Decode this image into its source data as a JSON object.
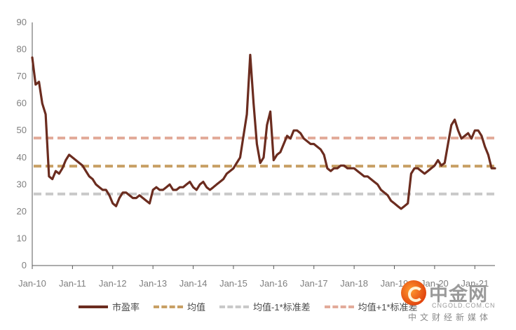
{
  "chart_data": {
    "type": "line",
    "ylim": [
      0,
      90
    ],
    "y_ticks": [
      "0",
      "10",
      "20",
      "30",
      "40",
      "50",
      "60",
      "70",
      "80",
      "90"
    ],
    "x_ticks": [
      "Jan-10",
      "Jan-11",
      "Jan-12",
      "Jan-13",
      "Jan-14",
      "Jan-15",
      "Jan-16",
      "Jan-17",
      "Jan-18",
      "Jan-19",
      "Jan-20",
      "Jan-21"
    ],
    "x_range": [
      "2010-01",
      "2021-07"
    ],
    "grid": false,
    "legend_position": "bottom",
    "series": [
      {
        "name": "市盈率",
        "color": "#6b2c1f",
        "style": "solid",
        "x": [
          "2010-01",
          "2010-02",
          "2010-03",
          "2010-04",
          "2010-05",
          "2010-06",
          "2010-07",
          "2010-08",
          "2010-09",
          "2010-10",
          "2010-11",
          "2010-12",
          "2011-01",
          "2011-02",
          "2011-03",
          "2011-04",
          "2011-05",
          "2011-06",
          "2011-07",
          "2011-08",
          "2011-09",
          "2011-10",
          "2011-11",
          "2011-12",
          "2012-01",
          "2012-02",
          "2012-03",
          "2012-04",
          "2012-05",
          "2012-06",
          "2012-07",
          "2012-08",
          "2012-09",
          "2012-10",
          "2012-11",
          "2012-12",
          "2013-01",
          "2013-02",
          "2013-03",
          "2013-04",
          "2013-05",
          "2013-06",
          "2013-07",
          "2013-08",
          "2013-09",
          "2013-10",
          "2013-11",
          "2013-12",
          "2014-01",
          "2014-02",
          "2014-03",
          "2014-04",
          "2014-05",
          "2014-06",
          "2014-07",
          "2014-08",
          "2014-09",
          "2014-10",
          "2014-11",
          "2014-12",
          "2015-01",
          "2015-02",
          "2015-03",
          "2015-04",
          "2015-05",
          "2015-06",
          "2015-07",
          "2015-08",
          "2015-09",
          "2015-10",
          "2015-11",
          "2015-12",
          "2016-01",
          "2016-02",
          "2016-03",
          "2016-04",
          "2016-05",
          "2016-06",
          "2016-07",
          "2016-08",
          "2016-09",
          "2016-10",
          "2016-11",
          "2016-12",
          "2017-01",
          "2017-02",
          "2017-03",
          "2017-04",
          "2017-05",
          "2017-06",
          "2017-07",
          "2017-08",
          "2017-09",
          "2017-10",
          "2017-11",
          "2017-12",
          "2018-01",
          "2018-02",
          "2018-03",
          "2018-04",
          "2018-05",
          "2018-06",
          "2018-07",
          "2018-08",
          "2018-09",
          "2018-10",
          "2018-11",
          "2018-12",
          "2019-01",
          "2019-02",
          "2019-03",
          "2019-04",
          "2019-05",
          "2019-06",
          "2019-07",
          "2019-08",
          "2019-09",
          "2019-10",
          "2019-11",
          "2019-12",
          "2020-01",
          "2020-02",
          "2020-03",
          "2020-04",
          "2020-05",
          "2020-06",
          "2020-07",
          "2020-08",
          "2020-09",
          "2020-10",
          "2020-11",
          "2020-12",
          "2021-01",
          "2021-02",
          "2021-03",
          "2021-04",
          "2021-05",
          "2021-06",
          "2021-07"
        ],
        "values": [
          77,
          67,
          68,
          60,
          56,
          33,
          32,
          35,
          34,
          36,
          39,
          41,
          40,
          39,
          38,
          37,
          35,
          33,
          32,
          30,
          29,
          28,
          28,
          26,
          23,
          22,
          25,
          27,
          27,
          26,
          25,
          25,
          26,
          25,
          24,
          23,
          28,
          29,
          28,
          28,
          29,
          30,
          28,
          28,
          29,
          29,
          30,
          31,
          29,
          28,
          30,
          31,
          29,
          28,
          29,
          30,
          31,
          32,
          34,
          35,
          36,
          38,
          40,
          48,
          56,
          78,
          60,
          45,
          38,
          40,
          52,
          57,
          39,
          41,
          42,
          45,
          48,
          47,
          50,
          50,
          49,
          47,
          46,
          45,
          45,
          44,
          43,
          41,
          36,
          35,
          36,
          36,
          37,
          37,
          36,
          36,
          36,
          35,
          34,
          33,
          33,
          32,
          31,
          30,
          28,
          27,
          26,
          24,
          23,
          22,
          21,
          22,
          23,
          34,
          36,
          36,
          35,
          34,
          35,
          36,
          37,
          39,
          37,
          38,
          45,
          52,
          54,
          50,
          47,
          48,
          49,
          47,
          50,
          50,
          48,
          44,
          41,
          36,
          36
        ]
      },
      {
        "name": "均值",
        "color": "#c8a065",
        "style": "dashed",
        "constant": 36.8
      },
      {
        "name": "均值-1*标准差",
        "color": "#c9c9c9",
        "style": "dashed",
        "constant": 26.5
      },
      {
        "name": "均值+1*标准差",
        "color": "#e2ab9a",
        "style": "dashed",
        "constant": 47.2
      }
    ]
  },
  "legend": {
    "items": [
      {
        "label": "市盈率",
        "color": "#6b2c1f",
        "style": "solid"
      },
      {
        "label": "均值",
        "color": "#c8a065",
        "style": "dashed"
      },
      {
        "label": "均值-1*标准差",
        "color": "#c9c9c9",
        "style": "dashed"
      },
      {
        "label": "均值+1*标准差",
        "color": "#e2ab9a",
        "style": "dashed"
      }
    ]
  },
  "watermark": {
    "cn_name": "中金网",
    "en_name": "CNGOLD.COM.CN",
    "subtitle": "中文财经新媒体"
  }
}
